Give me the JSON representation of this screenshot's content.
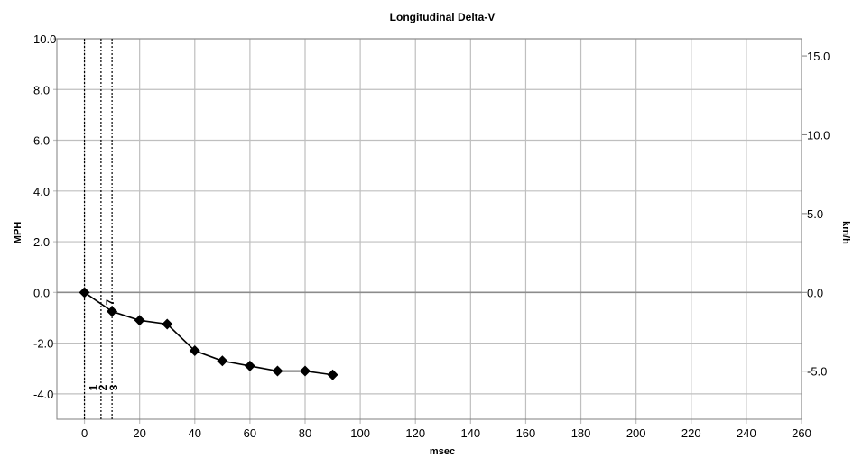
{
  "chart_data": {
    "type": "line",
    "title": "Longitudinal Delta-V",
    "xlabel": "msec",
    "ylabel": "MPH",
    "y2label": "km/h",
    "xlim": [
      -10,
      260
    ],
    "ylim": [
      -5,
      10
    ],
    "y2lim": [
      -8.05,
      16.09
    ],
    "x_ticks": [
      "0",
      "20",
      "40",
      "60",
      "80",
      "100",
      "120",
      "140",
      "160",
      "180",
      "200",
      "220",
      "240",
      "260"
    ],
    "y_ticks": [
      "10.0",
      "8.0",
      "6.0",
      "4.0",
      "2.0",
      "0.0",
      "-2.0",
      "-4.0"
    ],
    "y_tick_values": [
      10,
      8,
      6,
      4,
      2,
      0,
      -2,
      -4
    ],
    "y2_ticks": [
      "15.0",
      "10.0",
      "5.0",
      "0.0",
      "-5.0"
    ],
    "y2_tick_values": [
      15,
      10,
      5,
      0,
      -5
    ],
    "grid": true,
    "series": [
      {
        "x": [
          0,
          10,
          20,
          30,
          40,
          50,
          60,
          70,
          80,
          90
        ],
        "y": [
          0.0,
          -0.75,
          -1.1,
          -1.25,
          -2.3,
          -2.7,
          -2.9,
          -3.1,
          -3.1,
          -3.25
        ],
        "color": "#000000",
        "marker": "diamond"
      }
    ],
    "event_markers": [
      {
        "label": "1",
        "x": 0,
        "style": "dotted"
      },
      {
        "label": "2",
        "x": 6,
        "style": "dotted"
      },
      {
        "label": "3",
        "x": 10,
        "style": "dotted"
      }
    ],
    "annotation": {
      "label": "7",
      "x": 8,
      "y": 0
    }
  }
}
